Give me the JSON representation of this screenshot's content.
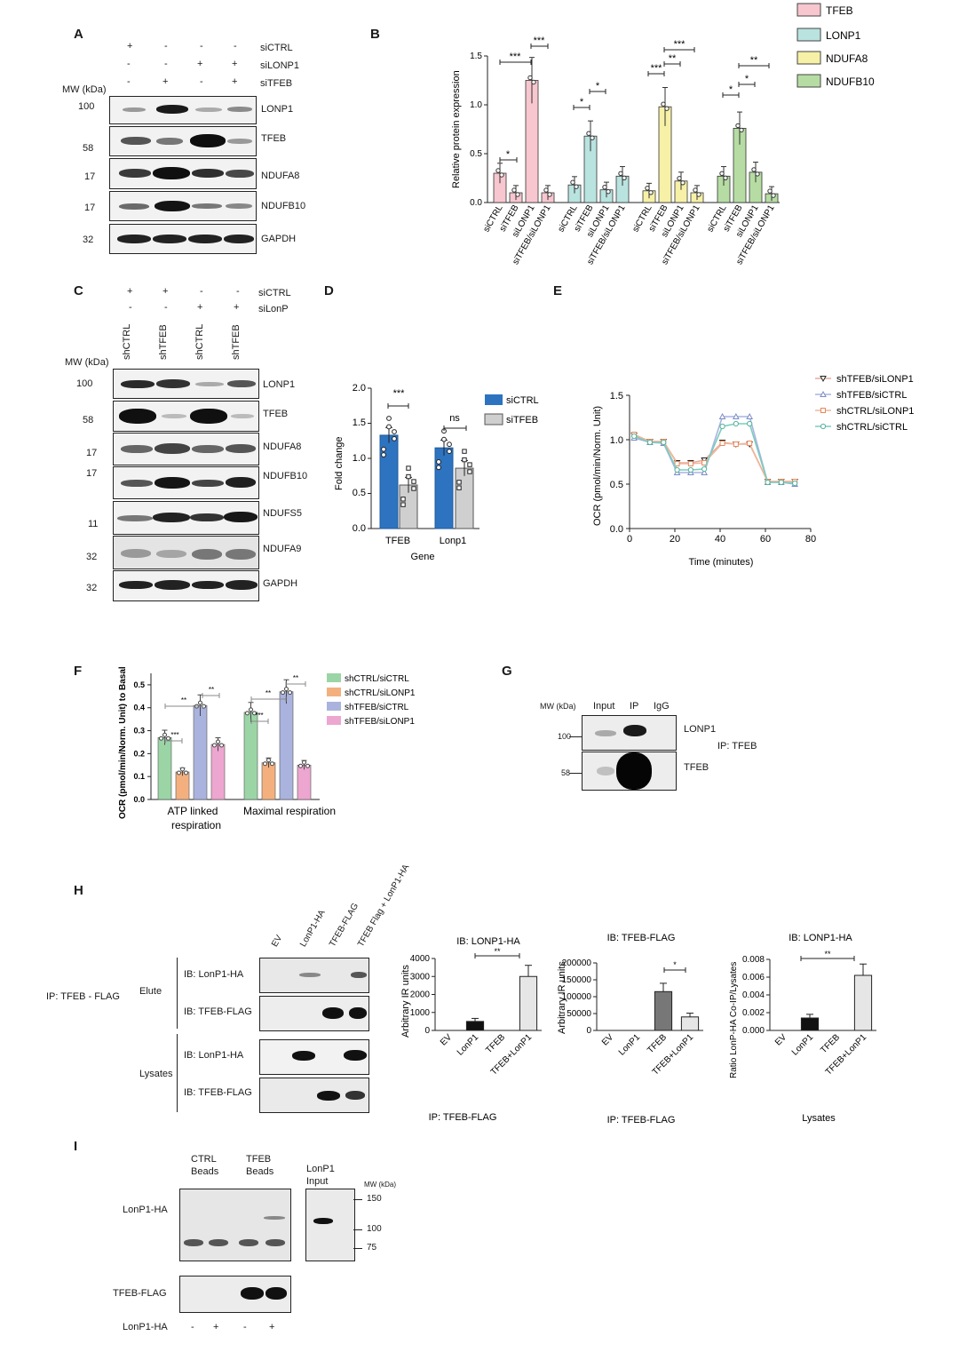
{
  "panel_letters": {
    "A": "A",
    "B": "B",
    "C": "C",
    "D": "D",
    "E": "E",
    "F": "F",
    "G": "G",
    "H": "H",
    "I": "I"
  },
  "panelA": {
    "conditions": [
      "siCTRL",
      "siLONP1",
      "siTFEB"
    ],
    "signs": [
      [
        "+",
        "-",
        "-",
        "-"
      ],
      [
        "-",
        "-",
        "+",
        "+"
      ],
      [
        "-",
        "+",
        "-",
        "+"
      ]
    ],
    "mw_header": "MW (kDa)",
    "blots": [
      {
        "mw": "100",
        "label": "LONP1"
      },
      {
        "mw": "58",
        "label": "TFEB"
      },
      {
        "mw": "17",
        "label": "NDUFA8"
      },
      {
        "mw": "17",
        "label": "NDUFB10"
      },
      {
        "mw": "32",
        "label": "GAPDH"
      }
    ]
  },
  "panelB": {
    "legend": [
      "TFEB",
      "LONP1",
      "NDUFA8",
      "NDUFB10"
    ],
    "colors": [
      "#f7c6cf",
      "#b9e3df",
      "#f6f1a6",
      "#b6dca3"
    ],
    "ylabel": "Relative protein expression",
    "yticks": [
      "0.0",
      "0.5",
      "1.0",
      "1.5"
    ],
    "categories": [
      "siCTRL",
      "siTFEB",
      "siLONP1",
      "siTFEB/siLONP1"
    ],
    "stars": [
      "*",
      "***",
      "***",
      "*",
      "*",
      "***",
      "**",
      "***",
      "*",
      "*",
      "**"
    ]
  },
  "panelC": {
    "conditions": [
      "siCTRL",
      "siLonP"
    ],
    "signs": [
      [
        "+",
        "+",
        "-",
        "-"
      ],
      [
        "-",
        "-",
        "+",
        "+"
      ]
    ],
    "lanes": [
      "shCTRL",
      "shTFEB",
      "shCTRL",
      "shTFEB"
    ],
    "mw_header": "MW (kDa)",
    "blots": [
      {
        "mw": "100",
        "label": "LONP1"
      },
      {
        "mw": "58",
        "label": "TFEB"
      },
      {
        "mw": "17",
        "label": "NDUFA8"
      },
      {
        "mw": "17",
        "label": "NDUFB10"
      },
      {
        "mw": "11",
        "label": "NDUFS5"
      },
      {
        "mw": "32",
        "label": "NDUFA9"
      },
      {
        "mw": "32",
        "label": "GAPDH"
      }
    ]
  },
  "panelD": {
    "ylabel": "Fold change",
    "xlabel": "Gene",
    "groups": [
      "TFEB",
      "Lonp1"
    ],
    "legend": [
      "siCTRL",
      "siTFEB"
    ],
    "yticks": [
      "0.0",
      "0.5",
      "1.0",
      "1.5",
      "2.0"
    ],
    "sig": [
      "***",
      "ns"
    ]
  },
  "panelE": {
    "ylabel": "OCR (pmol/min/Norm. Unit)",
    "xlabel": "Time (minutes)",
    "xticks": [
      "0",
      "20",
      "40",
      "60",
      "80"
    ],
    "yticks": [
      "0.0",
      "0.5",
      "1.0",
      "1.5"
    ],
    "legend": [
      "shTFEB/siLONP1",
      "shTFEB/siCTRL",
      "shCTRL/siLONP1",
      "shCTRL/siCTRL"
    ]
  },
  "panelF": {
    "ylabel": "OCR (pmol/min/Norm. Unit) to Basal",
    "yticks": [
      "0.0",
      "0.1",
      "0.2",
      "0.3",
      "0.4",
      "0.5"
    ],
    "groups": [
      "ATP linked respiration",
      "Maximal respiration"
    ],
    "group_line1": [
      "ATP linked",
      "Maximal respiration"
    ],
    "group_line2": [
      "respiration",
      ""
    ],
    "legend": [
      "shCTRL/siCTRL",
      "shCTRL/siLONP1",
      "shTFEB/siCTRL",
      "shTFEB/siLONP1"
    ],
    "colors": [
      "#9bd5a6",
      "#f3b07e",
      "#aab3de",
      "#eda6cf"
    ],
    "sig": [
      "***",
      "**",
      "**",
      "***",
      "**",
      "**"
    ]
  },
  "panelG": {
    "mw_header": "MW (kDa)",
    "lanes": [
      "Input",
      "IP",
      "IgG"
    ],
    "mw": [
      "100",
      "58"
    ],
    "labels": [
      "LONP1",
      "TFEB"
    ],
    "ip": "IP: TFEB"
  },
  "panelH": {
    "lanes": [
      "EV",
      "LonP1-HA",
      "TFEB-FLAG",
      "TFEB Flag + LonP1-HA"
    ],
    "ip_label": "IP: TFEB - FLAG",
    "section_elute": "Elute",
    "section_lysates": "Lysates",
    "blot_labels": [
      "IB: LonP1-HA",
      "IB: TFEB-FLAG",
      "IB: LonP1-HA",
      "IB: TFEB-FLAG"
    ],
    "chart1": {
      "title": "IB: LONP1-HA",
      "ylabel": "Arbitrary IR units",
      "footer": "IP: TFEB-FLAG",
      "yticks": [
        "0",
        "1000",
        "2000",
        "3000",
        "4000"
      ],
      "cats": [
        "EV",
        "LonP1",
        "TFEB",
        "TFEB+LonP1"
      ],
      "sig": "**"
    },
    "chart2": {
      "title": "IB: TFEB-FLAG",
      "ylabel": "Arbitrary IR units",
      "footer": "IP: TFEB-FLAG",
      "yticks": [
        "0",
        "50000",
        "100000",
        "150000",
        "200000"
      ],
      "cats": [
        "EV",
        "LonP1",
        "TFEB",
        "TFEB+LonP1"
      ],
      "sig": "*"
    },
    "chart3": {
      "title": "IB: LONP1-HA",
      "ylabel": "Ratio LonP-HA Co-IP/Lysates",
      "footer": "Lysates",
      "yticks": [
        "0.000",
        "0.002",
        "0.004",
        "0.006",
        "0.008"
      ],
      "cats": [
        "EV",
        "LonP1",
        "TFEB",
        "TFEB+LonP1"
      ],
      "sig": "**"
    }
  },
  "panelI": {
    "beads": [
      "CTRL",
      "TFEB"
    ],
    "beads_word": "Beads",
    "input": [
      "LonP1",
      "Input"
    ],
    "mw_header": "MW (kDa)",
    "mw": [
      "150",
      "100",
      "75"
    ],
    "labels": [
      "LonP1-HA",
      "TFEB-FLAG",
      "LonP1-HA"
    ],
    "signs": [
      "-",
      "+",
      "-",
      "+"
    ]
  },
  "chart_data": [
    {
      "type": "bar",
      "title": "",
      "ylabel": "Relative protein expression",
      "ylim": [
        0,
        1.5
      ],
      "categories": [
        "siCTRL",
        "siTFEB",
        "siLONP1",
        "siTFEB/siLONP1"
      ],
      "series": [
        {
          "name": "TFEB",
          "values": [
            0.3,
            0.1,
            1.25,
            0.1
          ]
        },
        {
          "name": "LONP1",
          "values": [
            0.18,
            0.68,
            0.13,
            0.27
          ]
        },
        {
          "name": "NDUFA8",
          "values": [
            0.12,
            0.98,
            0.22,
            0.1
          ]
        },
        {
          "name": "NDUFB10",
          "values": [
            0.27,
            0.76,
            0.31,
            0.09
          ]
        }
      ]
    },
    {
      "type": "bar",
      "ylabel": "Fold change",
      "xlabel": "Gene",
      "ylim": [
        0,
        2.0
      ],
      "categories": [
        "TFEB",
        "Lonp1"
      ],
      "series": [
        {
          "name": "siCTRL",
          "values": [
            1.33,
            1.15
          ]
        },
        {
          "name": "siTFEB",
          "values": [
            0.62,
            0.86
          ]
        }
      ]
    },
    {
      "type": "line",
      "ylabel": "OCR (pmol/min/Norm. Unit)",
      "xlabel": "Time (minutes)",
      "xlim": [
        0,
        80
      ],
      "ylim": [
        0,
        1.5
      ],
      "x": [
        2,
        9,
        15,
        21,
        27,
        33,
        41,
        47,
        53,
        61,
        67,
        73
      ],
      "series": [
        {
          "name": "shTFEB/siLONP1",
          "values": [
            1.05,
            0.98,
            0.98,
            0.74,
            0.74,
            0.77,
            0.97,
            0.95,
            0.95,
            0.53,
            0.53,
            0.53
          ]
        },
        {
          "name": "shTFEB/siCTRL",
          "values": [
            1.02,
            0.97,
            0.96,
            0.63,
            0.63,
            0.63,
            1.26,
            1.26,
            1.26,
            0.52,
            0.52,
            0.5
          ]
        },
        {
          "name": "shCTRL/siLONP1",
          "values": [
            1.06,
            0.98,
            0.98,
            0.73,
            0.73,
            0.74,
            0.96,
            0.95,
            0.96,
            0.53,
            0.53,
            0.53
          ]
        },
        {
          "name": "shCTRL/siCTRL",
          "values": [
            1.04,
            0.97,
            0.97,
            0.66,
            0.66,
            0.67,
            1.15,
            1.18,
            1.18,
            0.52,
            0.52,
            0.51
          ]
        }
      ]
    },
    {
      "type": "bar",
      "ylabel": "OCR (pmol/min/Norm. Unit) to Basal",
      "ylim": [
        0,
        0.5
      ],
      "categories": [
        "ATP linked respiration",
        "Maximal respiration"
      ],
      "series": [
        {
          "name": "shCTRL/siCTRL",
          "values": [
            0.27,
            0.38
          ]
        },
        {
          "name": "shCTRL/siLONP1",
          "values": [
            0.12,
            0.16
          ]
        },
        {
          "name": "shTFEB/siCTRL",
          "values": [
            0.41,
            0.47
          ]
        },
        {
          "name": "shTFEB/siLONP1",
          "values": [
            0.24,
            0.15
          ]
        }
      ]
    },
    {
      "type": "bar",
      "title": "IB: LONP1-HA",
      "ylabel": "Arbitrary IR units",
      "ylim": [
        0,
        4000
      ],
      "categories": [
        "EV",
        "LonP1",
        "TFEB",
        "TFEB+LonP1"
      ],
      "values": [
        0,
        500,
        0,
        3000
      ]
    },
    {
      "type": "bar",
      "title": "IB: TFEB-FLAG",
      "ylabel": "Arbitrary IR units",
      "ylim": [
        0,
        200000
      ],
      "categories": [
        "EV",
        "LonP1",
        "TFEB",
        "TFEB+LonP1"
      ],
      "values": [
        0,
        0,
        115000,
        40000
      ]
    },
    {
      "type": "bar",
      "title": "IB: LONP1-HA",
      "ylabel": "Ratio LonP-HA Co-IP/Lysates",
      "ylim": [
        0,
        0.008
      ],
      "categories": [
        "EV",
        "LonP1",
        "TFEB",
        "TFEB+LonP1"
      ],
      "values": [
        0,
        0.0014,
        0,
        0.0062
      ]
    }
  ]
}
